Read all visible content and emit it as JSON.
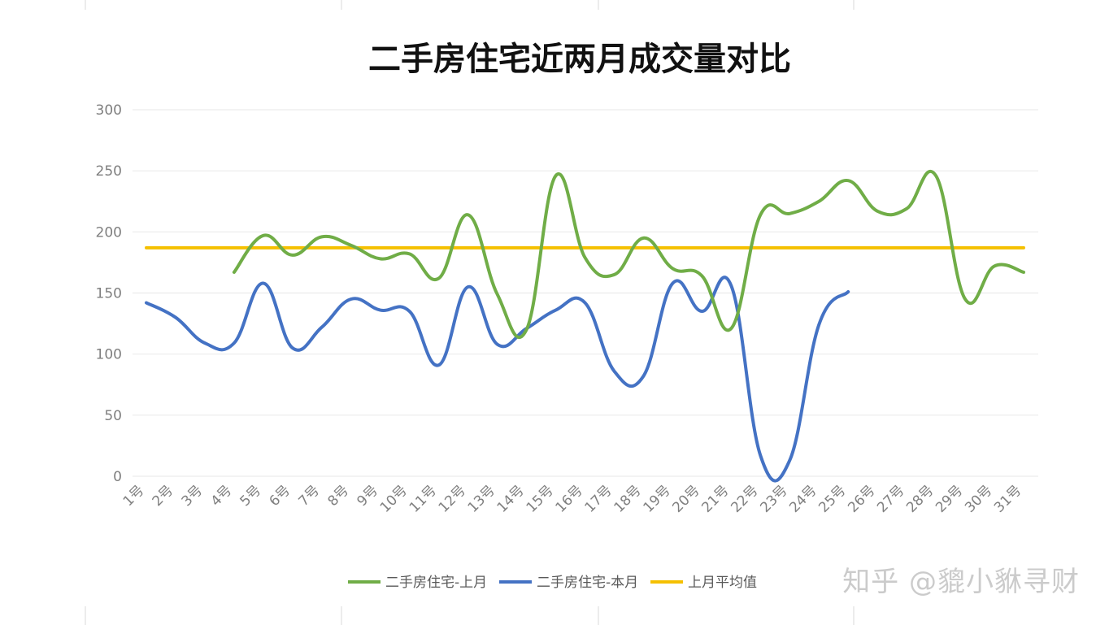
{
  "watermark": "知乎 @貔小貅寻财",
  "colors": {
    "last_month": "#70ad47",
    "this_month": "#4472c4",
    "average": "#f5c000",
    "grid": "#ececec",
    "tick_text": "#7f7f7f"
  },
  "chart_data": {
    "type": "line",
    "title": "二手房住宅近两月成交量对比",
    "xlabel": "",
    "ylabel": "",
    "ylim": [
      0,
      300
    ],
    "yticks": [
      0,
      50,
      100,
      150,
      200,
      250,
      300
    ],
    "grid": true,
    "legend_position": "bottom",
    "categories": [
      "1号",
      "2号",
      "3号",
      "4号",
      "5号",
      "6号",
      "7号",
      "8号",
      "9号",
      "10号",
      "11号",
      "12号",
      "13号",
      "14号",
      "15号",
      "16号",
      "17号",
      "18号",
      "19号",
      "20号",
      "21号",
      "22号",
      "23号",
      "24号",
      "25号",
      "26号",
      "27号",
      "28号",
      "29号",
      "30号",
      "31号"
    ],
    "series": [
      {
        "name": "二手房住宅-上月",
        "color": "#70ad47",
        "values": [
          null,
          null,
          null,
          167,
          197,
          181,
          196,
          189,
          178,
          182,
          162,
          214,
          149,
          120,
          246,
          179,
          165,
          195,
          170,
          164,
          121,
          214,
          215,
          225,
          242,
          217,
          219,
          246,
          145,
          172,
          167
        ]
      },
      {
        "name": "二手房住宅-本月",
        "color": "#4472c4",
        "values": [
          142,
          130,
          109,
          109,
          158,
          105,
          122,
          145,
          136,
          135,
          91,
          155,
          108,
          121,
          136,
          142,
          86,
          82,
          158,
          135,
          156,
          17,
          13,
          124,
          151,
          null,
          null,
          null,
          null,
          null,
          null
        ]
      },
      {
        "name": "上月平均值",
        "color": "#f5c000",
        "values": [
          187,
          187,
          187,
          187,
          187,
          187,
          187,
          187,
          187,
          187,
          187,
          187,
          187,
          187,
          187,
          187,
          187,
          187,
          187,
          187,
          187,
          187,
          187,
          187,
          187,
          187,
          187,
          187,
          187,
          187,
          187
        ]
      }
    ]
  }
}
